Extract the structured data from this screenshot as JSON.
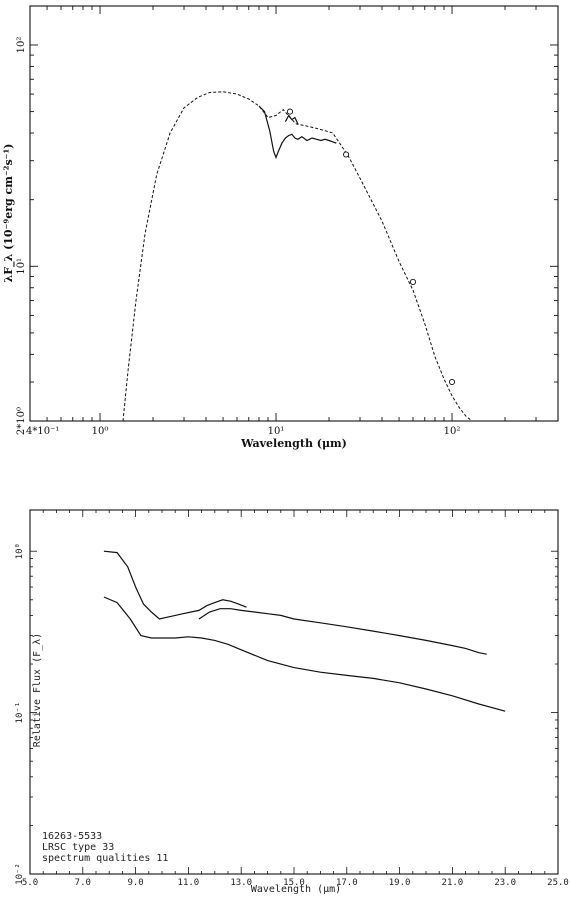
{
  "chart_data": [
    {
      "type": "line",
      "xscale": "log",
      "yscale": "log",
      "xlabel": "Wavelength (μm)",
      "ylabel": "λF_λ (10⁻⁹erg cm⁻²s⁻¹)",
      "xlim": [
        0.4,
        400
      ],
      "ylim": [
        2,
        150
      ],
      "x_ticks": [
        {
          "value": 0.4,
          "label": "4*10⁻¹"
        },
        {
          "value": 1,
          "label": "10⁰"
        },
        {
          "value": 10,
          "label": "10¹"
        },
        {
          "value": 100,
          "label": "10²"
        }
      ],
      "y_ticks": [
        {
          "value": 2,
          "label": "2*10⁰"
        },
        {
          "value": 10,
          "label": "10¹"
        },
        {
          "value": 100,
          "label": "10²"
        }
      ],
      "series": [
        {
          "style": "dashed",
          "x": [
            1.35,
            1.45,
            1.6,
            1.8,
            2.1,
            2.5,
            3.0,
            3.6,
            4.2,
            5.0,
            6.0,
            7.0,
            8.0,
            9.0,
            10.0,
            11.0,
            12.0,
            13.0,
            15.0,
            17.0,
            19.0,
            21.0,
            23.0,
            26.0,
            30.0,
            40.0,
            50.0,
            60.0,
            70.0,
            80.0,
            90.0,
            100.0,
            110.0,
            120.0,
            130.0
          ],
          "y": [
            2.0,
            3.5,
            7.0,
            14.0,
            26.0,
            40.0,
            52.0,
            58.0,
            61.0,
            61.5,
            60.0,
            57.0,
            53.0,
            47.0,
            48.0,
            51.0,
            47.0,
            44.0,
            43.0,
            42.0,
            41.0,
            40.0,
            36.0,
            31.0,
            25.0,
            16.0,
            10.5,
            7.8,
            5.5,
            3.9,
            3.1,
            2.6,
            2.3,
            2.1,
            2.0
          ]
        },
        {
          "style": "solid",
          "x": [
            8.0,
            8.6,
            9.2,
            9.7,
            10.0,
            10.3,
            10.8,
            11.3,
            11.8,
            12.3,
            12.8,
            13.3,
            14.0,
            15.0,
            16.0,
            17.0,
            18.0,
            19.0,
            20.0,
            21.0,
            22.0
          ],
          "y": [
            53.0,
            50.0,
            41.0,
            33.0,
            31.0,
            33.0,
            36.0,
            38.0,
            39.0,
            39.5,
            38.0,
            37.5,
            38.5,
            37.0,
            38.0,
            37.5,
            37.0,
            37.5,
            37.0,
            36.5,
            36.0
          ]
        },
        {
          "style": "solid",
          "x": [
            11.3,
            11.8,
            12.3,
            12.8,
            13.3
          ],
          "y": [
            45.0,
            48.0,
            46.0,
            47.0,
            44.0
          ]
        }
      ],
      "points": {
        "marker": "circle",
        "x": [
          12.0,
          25.0,
          60.0,
          100.0
        ],
        "y": [
          50.0,
          32.0,
          8.5,
          3.0
        ]
      }
    },
    {
      "type": "line",
      "yscale": "log",
      "xlabel": "Wavelength (μm)",
      "ylabel": "Relative Flux (F_λ)",
      "xlim": [
        5.0,
        25.0
      ],
      "ylim": [
        0.01,
        1.8
      ],
      "x_ticks": [
        {
          "value": 5.0,
          "label": "5.0"
        },
        {
          "value": 7.0,
          "label": "7.0"
        },
        {
          "value": 9.0,
          "label": "9.0"
        },
        {
          "value": 11.0,
          "label": "11.0"
        },
        {
          "value": 13.0,
          "label": "13.0"
        },
        {
          "value": 15.0,
          "label": "15.0"
        },
        {
          "value": 17.0,
          "label": "17.0"
        },
        {
          "value": 19.0,
          "label": "19.0"
        },
        {
          "value": 21.0,
          "label": "21.0"
        },
        {
          "value": 23.0,
          "label": "23.0"
        },
        {
          "value": 25.0,
          "label": "25.0"
        }
      ],
      "y_ticks": [
        {
          "value": 0.01,
          "label": "10⁻²"
        },
        {
          "value": 0.1,
          "label": "10⁻¹"
        },
        {
          "value": 1.0,
          "label": "10⁰"
        }
      ],
      "series": [
        {
          "style": "solid",
          "x": [
            7.8,
            8.3,
            8.7,
            9.0,
            9.3,
            9.6,
            9.9,
            10.2,
            10.5,
            10.8,
            11.1,
            11.4,
            11.7,
            12.0,
            12.3,
            12.6,
            12.9,
            13.2
          ],
          "y": [
            1.0,
            0.98,
            0.8,
            0.6,
            0.47,
            0.42,
            0.38,
            0.39,
            0.4,
            0.41,
            0.42,
            0.43,
            0.46,
            0.48,
            0.5,
            0.49,
            0.47,
            0.45
          ]
        },
        {
          "style": "solid",
          "x": [
            11.4,
            11.8,
            12.2,
            12.6,
            13.0,
            13.5,
            14.0,
            14.5,
            15.0,
            16.0,
            17.0,
            18.0,
            19.0,
            20.0,
            21.0,
            21.5,
            22.0,
            22.3
          ],
          "y": [
            0.38,
            0.42,
            0.44,
            0.44,
            0.43,
            0.42,
            0.41,
            0.4,
            0.38,
            0.36,
            0.34,
            0.32,
            0.3,
            0.28,
            0.26,
            0.25,
            0.235,
            0.23
          ]
        },
        {
          "style": "solid",
          "x": [
            7.8,
            8.3,
            8.8,
            9.2,
            9.6,
            10.0,
            10.5,
            11.0,
            11.5,
            12.0,
            12.5,
            13.0,
            14.0,
            15.0,
            16.0,
            17.0,
            18.0,
            19.0,
            20.0,
            21.0,
            22.0,
            23.0
          ],
          "y": [
            0.52,
            0.48,
            0.38,
            0.3,
            0.29,
            0.29,
            0.29,
            0.295,
            0.29,
            0.28,
            0.265,
            0.245,
            0.21,
            0.19,
            0.178,
            0.17,
            0.163,
            0.153,
            0.14,
            0.127,
            0.113,
            0.102
          ]
        }
      ],
      "annotations": [
        "16263-5533",
        "LRSC type 33",
        "spectrum qualities 11"
      ]
    }
  ]
}
